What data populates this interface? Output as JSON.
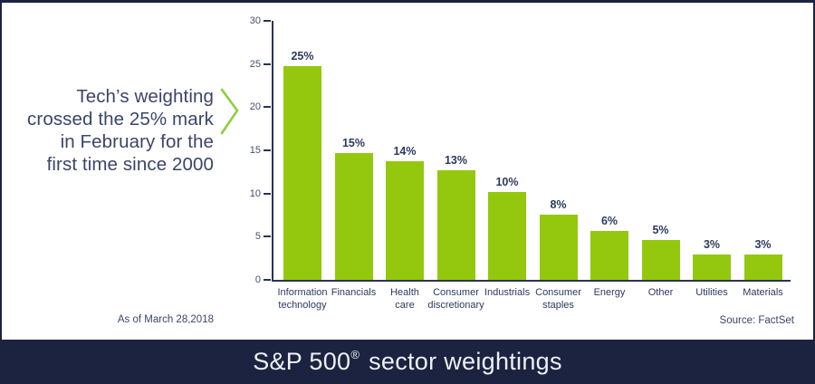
{
  "annotation": {
    "lines": [
      "Tech’s weighting",
      "crossed the 25% mark",
      "in February for the",
      "first time since 2000"
    ]
  },
  "chart_data": {
    "type": "bar",
    "title": "S&P 500® sector weightings",
    "categories": [
      "Information technology",
      "Financials",
      "Health care",
      "Consumer discretionary",
      "Industrials",
      "Consumer staples",
      "Energy",
      "Other",
      "Utilities",
      "Materials"
    ],
    "category_lines": [
      [
        "Information",
        "technology"
      ],
      [
        "Financials"
      ],
      [
        "Health",
        "care"
      ],
      [
        "Consumer",
        "discretionary"
      ],
      [
        "Industrials"
      ],
      [
        "Consumer",
        "staples"
      ],
      [
        "Energy"
      ],
      [
        "Other"
      ],
      [
        "Utilities"
      ],
      [
        "Materials"
      ]
    ],
    "values": [
      25,
      15,
      14,
      13,
      10,
      8,
      6,
      5,
      3,
      3
    ],
    "value_labels": [
      "25%",
      "15%",
      "14%",
      "13%",
      "10%",
      "8%",
      "6%",
      "5%",
      "3%",
      "3%"
    ],
    "plotted_values": [
      24.8,
      14.7,
      13.7,
      12.7,
      10.2,
      7.6,
      5.7,
      4.6,
      2.9,
      2.9
    ],
    "ylim": [
      0,
      30
    ],
    "yticks": [
      30,
      25,
      20,
      15,
      10,
      5,
      0
    ],
    "xlabel": "",
    "ylabel": "",
    "grid": false,
    "legend": false,
    "bar_color": "#94c80e"
  },
  "footer": {
    "as_of": "As of March 28,2018",
    "source": "Source: FactSet"
  },
  "title": {
    "pre": "S&P 500",
    "sup": "®",
    "post": " sector weightings"
  },
  "colors": {
    "navy_band": "#1b2340",
    "axis": "#2a3354",
    "text_navy": "#2c3a5e",
    "green": "#94c80e",
    "chevron_green": "#8bd03c",
    "title_text": "#edf0f6"
  }
}
